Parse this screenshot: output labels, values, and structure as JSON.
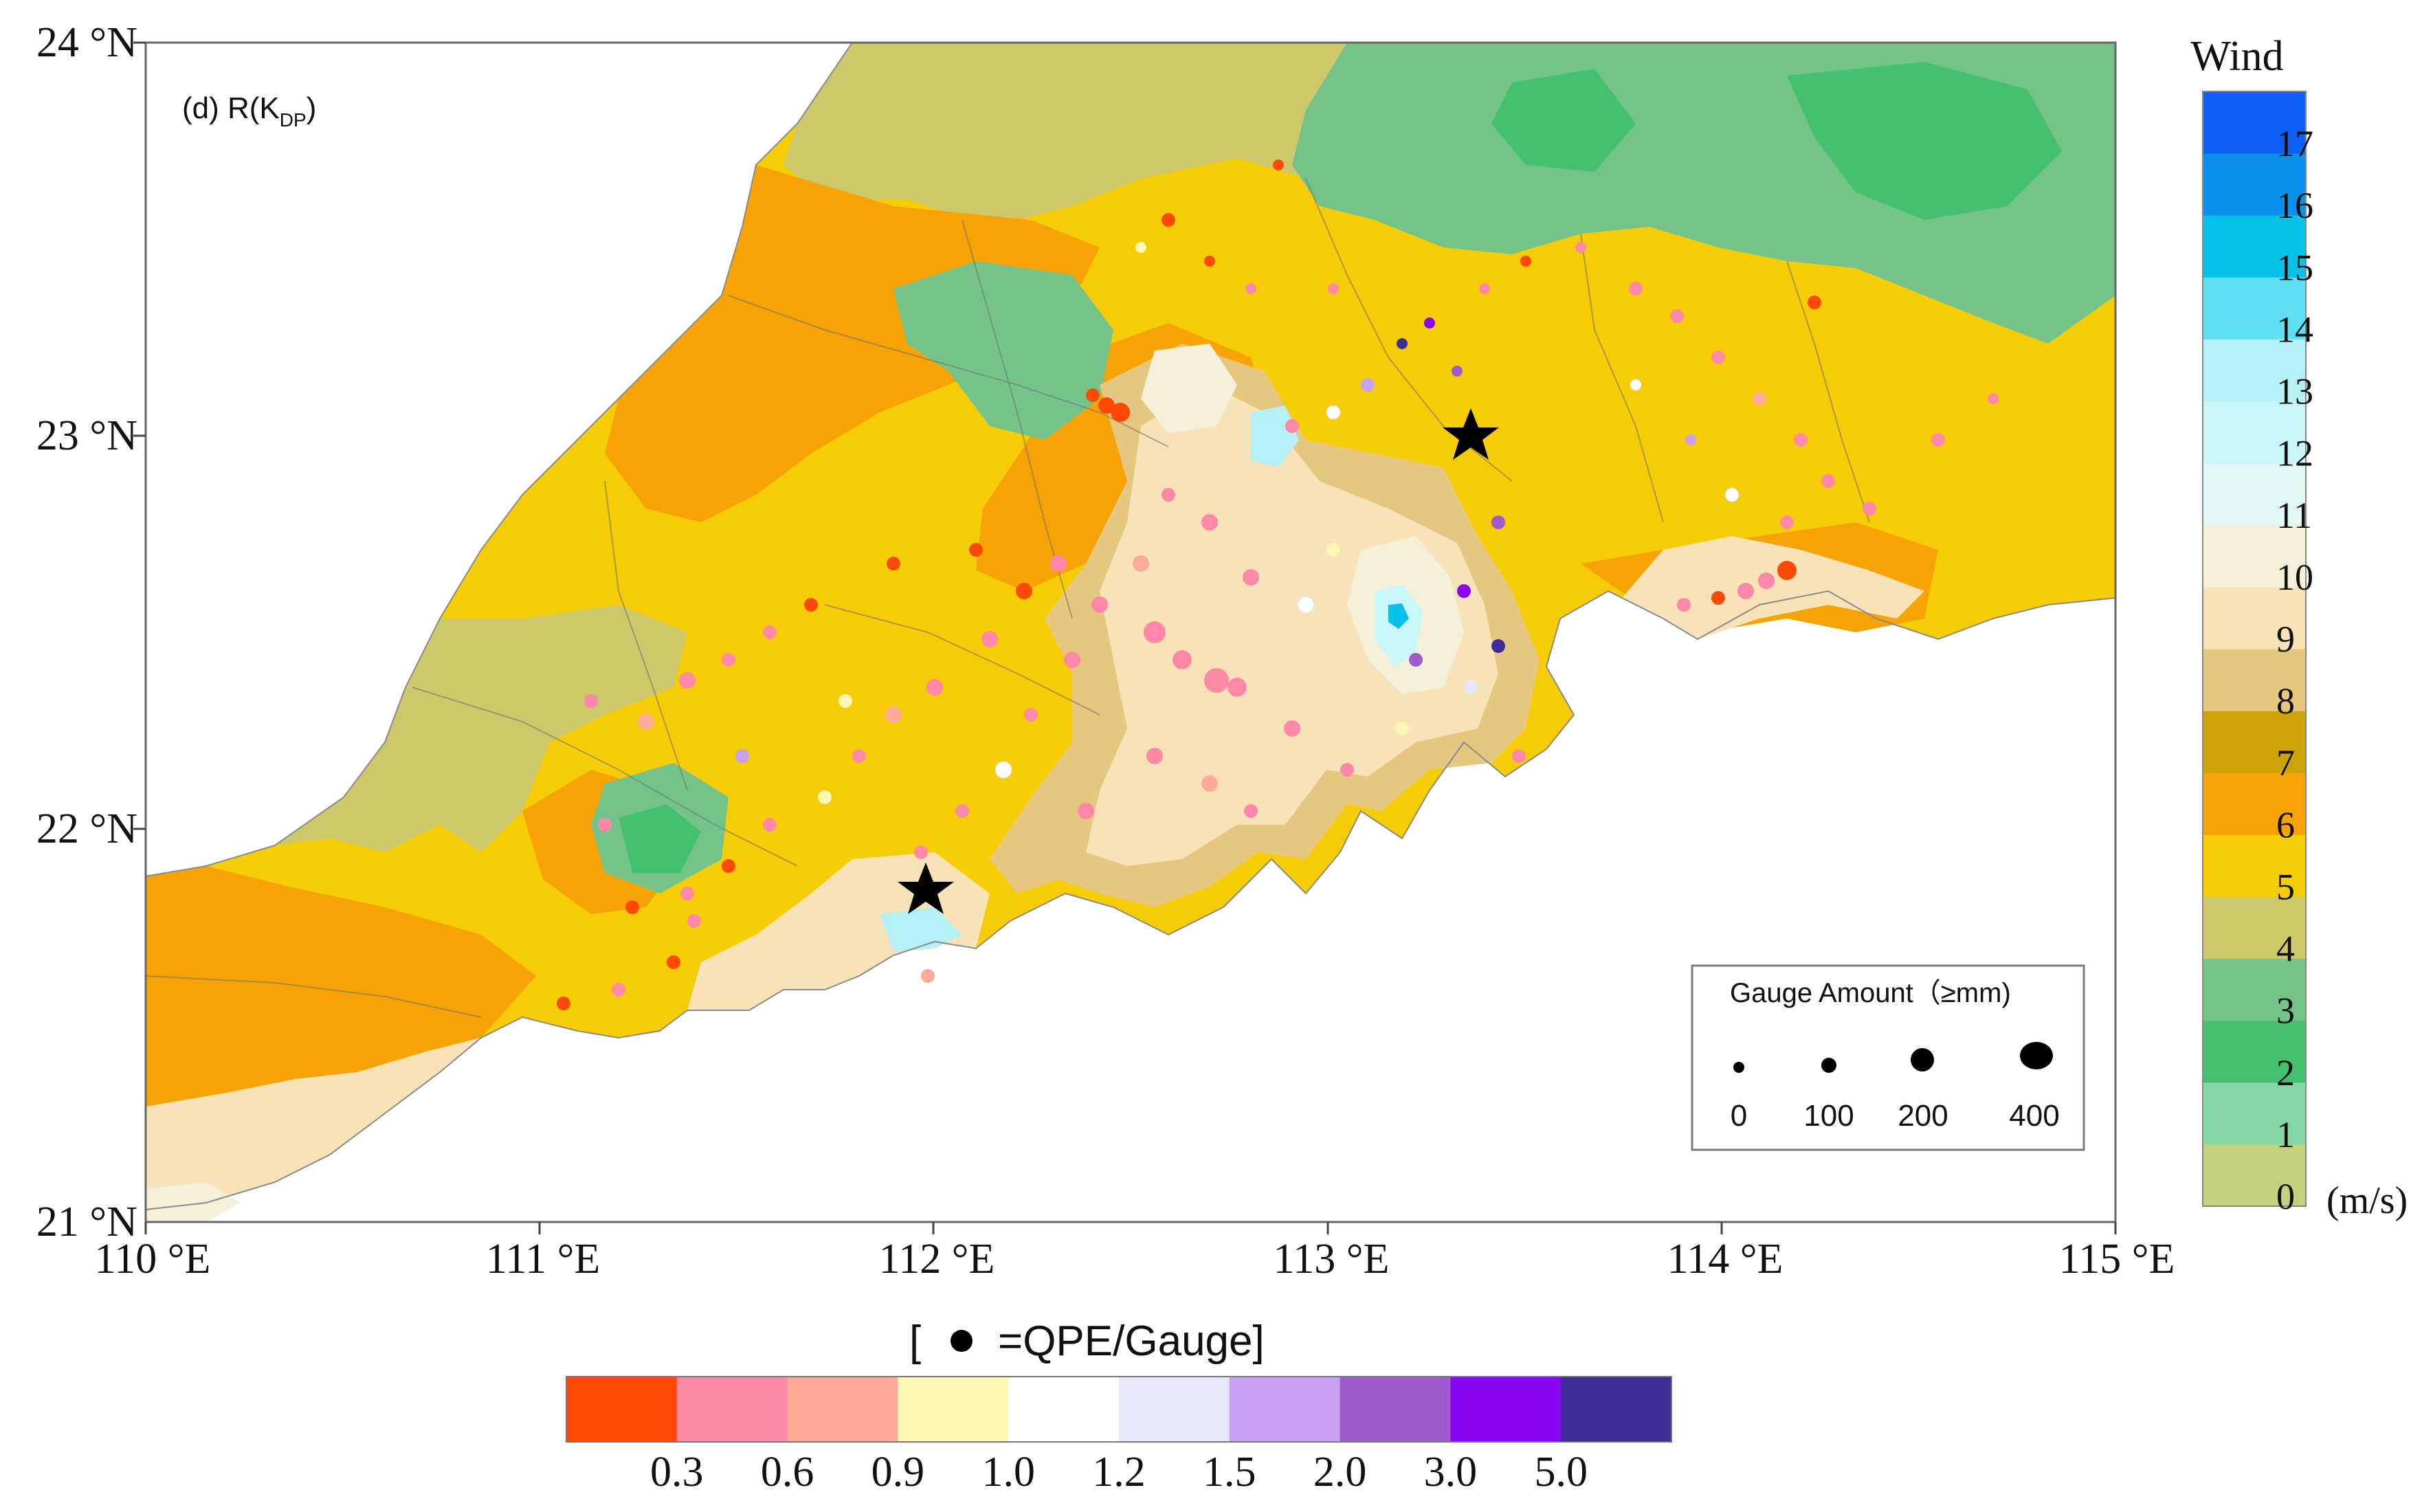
{
  "panel_label": {
    "prefix": "(d) R(K",
    "sub": "DP",
    "suffix": ")"
  },
  "axes": {
    "x_ticks": [
      "110 °E",
      "111 °E",
      "112 °E",
      "113 °E",
      "114 °E",
      "115 °E"
    ],
    "y_ticks": [
      "24 °N",
      "23 °N",
      "22 °N",
      "21 °N"
    ],
    "lon_range": [
      110,
      115
    ],
    "lat_range": [
      21,
      24
    ]
  },
  "wind_colorbar": {
    "title": "Wind",
    "unit": "(m/s)",
    "tick_labels": [
      "0",
      "1",
      "2",
      "3",
      "4",
      "5",
      "6",
      "7",
      "8",
      "9",
      "10",
      "11",
      "12",
      "13",
      "14",
      "15",
      "16",
      "17"
    ],
    "colors": [
      "#c5d07c",
      "#85d6a6",
      "#44c06e",
      "#74c48a",
      "#cdc86a",
      "#f6cd05",
      "#f8a305",
      "#cda408",
      "#e6c77f",
      "#f8e3b8",
      "#f5f0da",
      "#e2f8f5",
      "#c9f6f6",
      "#b5f0f5",
      "#5ee0f2",
      "#06c2e8",
      "#0890ea",
      "#0d5ff5"
    ]
  },
  "gauge_legend": {
    "title": "Gauge Amount（≥mm)",
    "labels": [
      "0",
      "100",
      "200",
      "400"
    ]
  },
  "ratio_colorbar": {
    "title_open": "[",
    "title_text": "=QPE/Gauge]",
    "tick_labels": [
      "0.3",
      "0.6",
      "0.9",
      "1.0",
      "1.2",
      "1.5",
      "2.0",
      "3.0",
      "5.0"
    ],
    "colors": [
      "#ff4a05",
      "#ff88a8",
      "#ffaa98",
      "#fff8b4",
      "#ffffff",
      "#e6e8f8",
      "#c8a0f2",
      "#a05ccc",
      "#8a06f0",
      "#3c2e96"
    ]
  },
  "markers": {
    "radar_stars": 2
  },
  "map_colors": {
    "sea": "#ffffff",
    "coast_light": "#f8e3b8",
    "frame": "#666666"
  }
}
